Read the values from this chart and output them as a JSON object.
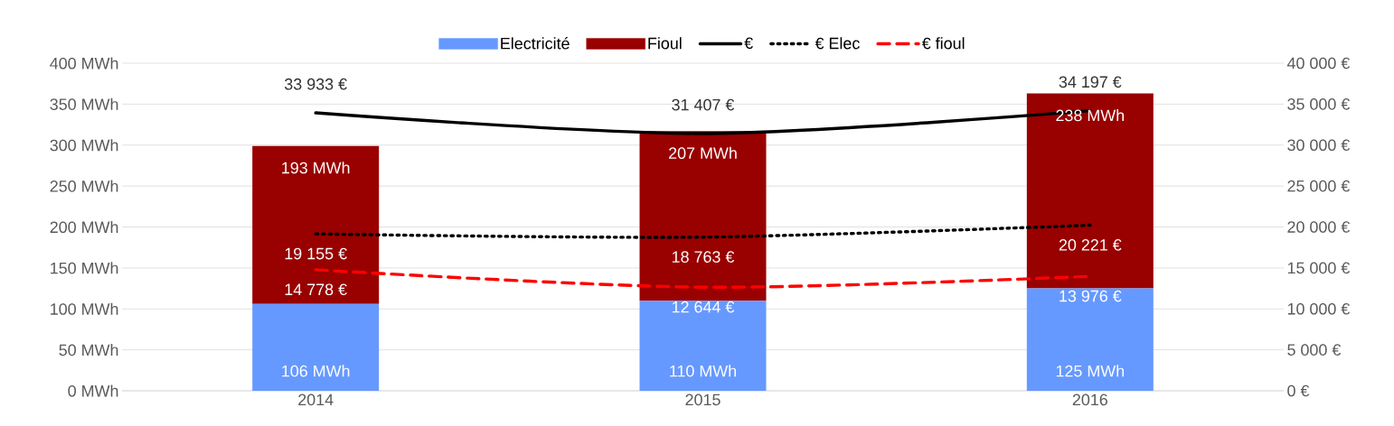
{
  "chart_data": {
    "type": "bar",
    "stacked": true,
    "categories": [
      "2014",
      "2015",
      "2016"
    ],
    "ylim": [
      0,
      400
    ],
    "yticks": [
      {
        "value": 0,
        "label": "0 MWh"
      },
      {
        "value": 50,
        "label": "50 MWh"
      },
      {
        "value": 100,
        "label": "100 MWh"
      },
      {
        "value": 150,
        "label": "150 MWh"
      },
      {
        "value": 200,
        "label": "200 MWh"
      },
      {
        "value": 250,
        "label": "250 MWh"
      },
      {
        "value": 300,
        "label": "300 MWh"
      },
      {
        "value": 350,
        "label": "350 MWh"
      },
      {
        "value": 400,
        "label": "400 MWh"
      }
    ],
    "y2lim": [
      0,
      40000
    ],
    "y2ticks": [
      {
        "value": 0,
        "label": "0 €"
      },
      {
        "value": 5000,
        "label": "5 000 €"
      },
      {
        "value": 10000,
        "label": "10 000 €"
      },
      {
        "value": 15000,
        "label": "15 000 €"
      },
      {
        "value": 20000,
        "label": "20 000 €"
      },
      {
        "value": 25000,
        "label": "25 000 €"
      },
      {
        "value": 30000,
        "label": "30 000 €"
      },
      {
        "value": 35000,
        "label": "35 000 €"
      },
      {
        "value": 40000,
        "label": "40 000 €"
      }
    ],
    "grid": "y",
    "legend": "top",
    "series": [
      {
        "name": "Electricité",
        "type": "bar",
        "color": "#6699ff",
        "values": [
          106,
          110,
          125
        ],
        "value_labels": [
          "106 MWh",
          "110 MWh",
          "125 MWh"
        ]
      },
      {
        "name": "Fioul",
        "type": "bar",
        "color": "#990000",
        "values": [
          193,
          207,
          238
        ],
        "value_labels": [
          "193 MWh",
          "207 MWh",
          "238 MWh"
        ]
      },
      {
        "name": "€",
        "type": "line",
        "axis": "y2",
        "color": "#000000",
        "line_style": "solid",
        "values": [
          33933,
          31407,
          34197
        ],
        "value_labels": [
          "33 933 €",
          "31 407 €",
          "34 197 €"
        ]
      },
      {
        "name": "€ Elec",
        "type": "line",
        "axis": "y2",
        "color": "#000000",
        "line_style": "dotted",
        "values": [
          19155,
          18763,
          20221
        ],
        "value_labels": [
          "19 155 €",
          "18 763 €",
          "20 221 €"
        ]
      },
      {
        "name": "€ fioul",
        "type": "line",
        "axis": "y2",
        "color": "#ff0000",
        "line_style": "dashed",
        "values": [
          14778,
          12644,
          13976
        ],
        "value_labels": [
          "14 778 €",
          "12 644 €",
          "13 976 €"
        ]
      }
    ]
  }
}
